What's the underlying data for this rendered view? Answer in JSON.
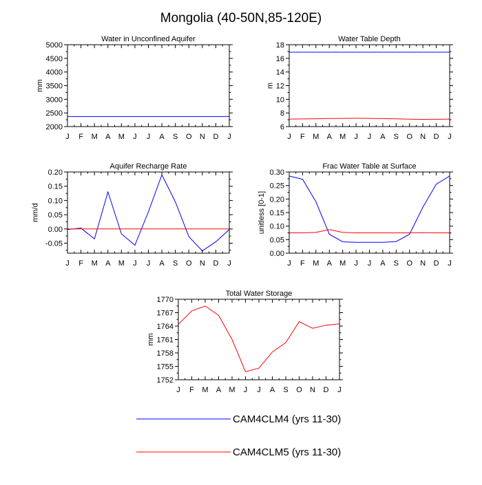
{
  "page_title": "Mongolia (40-50N,85-120E)",
  "months": [
    "J",
    "F",
    "M",
    "A",
    "M",
    "J",
    "J",
    "A",
    "S",
    "O",
    "N",
    "D",
    "J"
  ],
  "series_colors": {
    "CAM4CLM4": "#0000ff",
    "CAM4CLM5": "#ff0000"
  },
  "legend": [
    {
      "label": "CAM4CLM4 (yrs 11-30)",
      "color": "#0000ff"
    },
    {
      "label": "CAM4CLM5 (yrs 11-30)",
      "color": "#ff0000"
    }
  ],
  "chart_data": [
    {
      "type": "line",
      "title": "Water in Unconfined Aquifer",
      "ylabel": "mm",
      "ylim": [
        2000,
        5000
      ],
      "yticks": [
        2000,
        2500,
        3000,
        3500,
        4000,
        4500,
        5000
      ],
      "ytick_labels": [
        "2000",
        "2500",
        "3000",
        "3500",
        "4000",
        "4500",
        "5000"
      ],
      "series": [
        {
          "name": "CAM4CLM4",
          "values": [
            2370,
            2370,
            2370,
            2370,
            2370,
            2370,
            2370,
            2370,
            2370,
            2370,
            2370,
            2370,
            2370
          ]
        }
      ]
    },
    {
      "type": "line",
      "title": "Water Table Depth",
      "ylabel": "m",
      "ylim": [
        6,
        18
      ],
      "yticks": [
        6,
        8,
        10,
        12,
        14,
        16,
        18
      ],
      "ytick_labels": [
        "6",
        "8",
        "10",
        "12",
        "14",
        "16",
        "18"
      ],
      "series": [
        {
          "name": "CAM4CLM4",
          "values": [
            16.9,
            16.9,
            16.9,
            16.9,
            16.9,
            16.9,
            16.9,
            16.9,
            16.9,
            16.9,
            16.9,
            16.9,
            16.9
          ]
        },
        {
          "name": "CAM4CLM5",
          "values": [
            7.1,
            7.12,
            7.15,
            7.18,
            7.2,
            7.22,
            7.2,
            7.17,
            7.13,
            7.08,
            7.06,
            7.07,
            7.1
          ]
        }
      ]
    },
    {
      "type": "line",
      "title": "Aquifer Recharge Rate",
      "ylabel": "mm/d",
      "ylim": [
        -0.085,
        0.2
      ],
      "yticks": [
        -0.05,
        0.0,
        0.05,
        0.1,
        0.15,
        0.2
      ],
      "ytick_labels": [
        "-0.05",
        "0.00",
        "0.05",
        "0.10",
        "0.15",
        "0.20"
      ],
      "series": [
        {
          "name": "CAM4CLM4",
          "values": [
            -0.002,
            0.003,
            -0.035,
            0.13,
            -0.017,
            -0.057,
            0.06,
            0.19,
            0.095,
            -0.027,
            -0.077,
            -0.045,
            -0.002
          ]
        },
        {
          "name": "CAM4CLM5",
          "values": [
            0,
            0,
            0,
            0,
            0,
            0,
            0,
            0,
            0,
            0,
            0,
            0,
            0
          ]
        }
      ]
    },
    {
      "type": "line",
      "title": "Frac Water Table at Surface",
      "ylabel": "unitless [0-1]",
      "ylim": [
        0.0,
        0.3
      ],
      "yticks": [
        0.0,
        0.05,
        0.1,
        0.15,
        0.2,
        0.25,
        0.3
      ],
      "ytick_labels": [
        "0.00",
        "0.05",
        "0.10",
        "0.15",
        "0.20",
        "0.25",
        "0.30"
      ],
      "series": [
        {
          "name": "CAM4CLM4",
          "values": [
            0.285,
            0.273,
            0.19,
            0.07,
            0.042,
            0.04,
            0.04,
            0.04,
            0.043,
            0.07,
            0.17,
            0.255,
            0.285
          ]
        },
        {
          "name": "CAM4CLM5",
          "values": [
            0.075,
            0.075,
            0.077,
            0.087,
            0.077,
            0.075,
            0.075,
            0.075,
            0.075,
            0.075,
            0.076,
            0.075,
            0.075
          ]
        }
      ]
    },
    {
      "type": "line",
      "title": "Total Water Storage",
      "ylabel": "mm",
      "ylim": [
        1752,
        1770
      ],
      "yticks": [
        1752,
        1755,
        1758,
        1761,
        1764,
        1767,
        1770
      ],
      "ytick_labels": [
        "1752",
        "1755",
        "1758",
        "1761",
        "1764",
        "1767",
        "1770"
      ],
      "series": [
        {
          "name": "CAM4CLM5",
          "values": [
            1764.4,
            1767.4,
            1768.5,
            1766.4,
            1761.0,
            1753.8,
            1754.6,
            1758.2,
            1760.3,
            1765.0,
            1763.5,
            1764.2,
            1764.5
          ]
        }
      ]
    }
  ]
}
